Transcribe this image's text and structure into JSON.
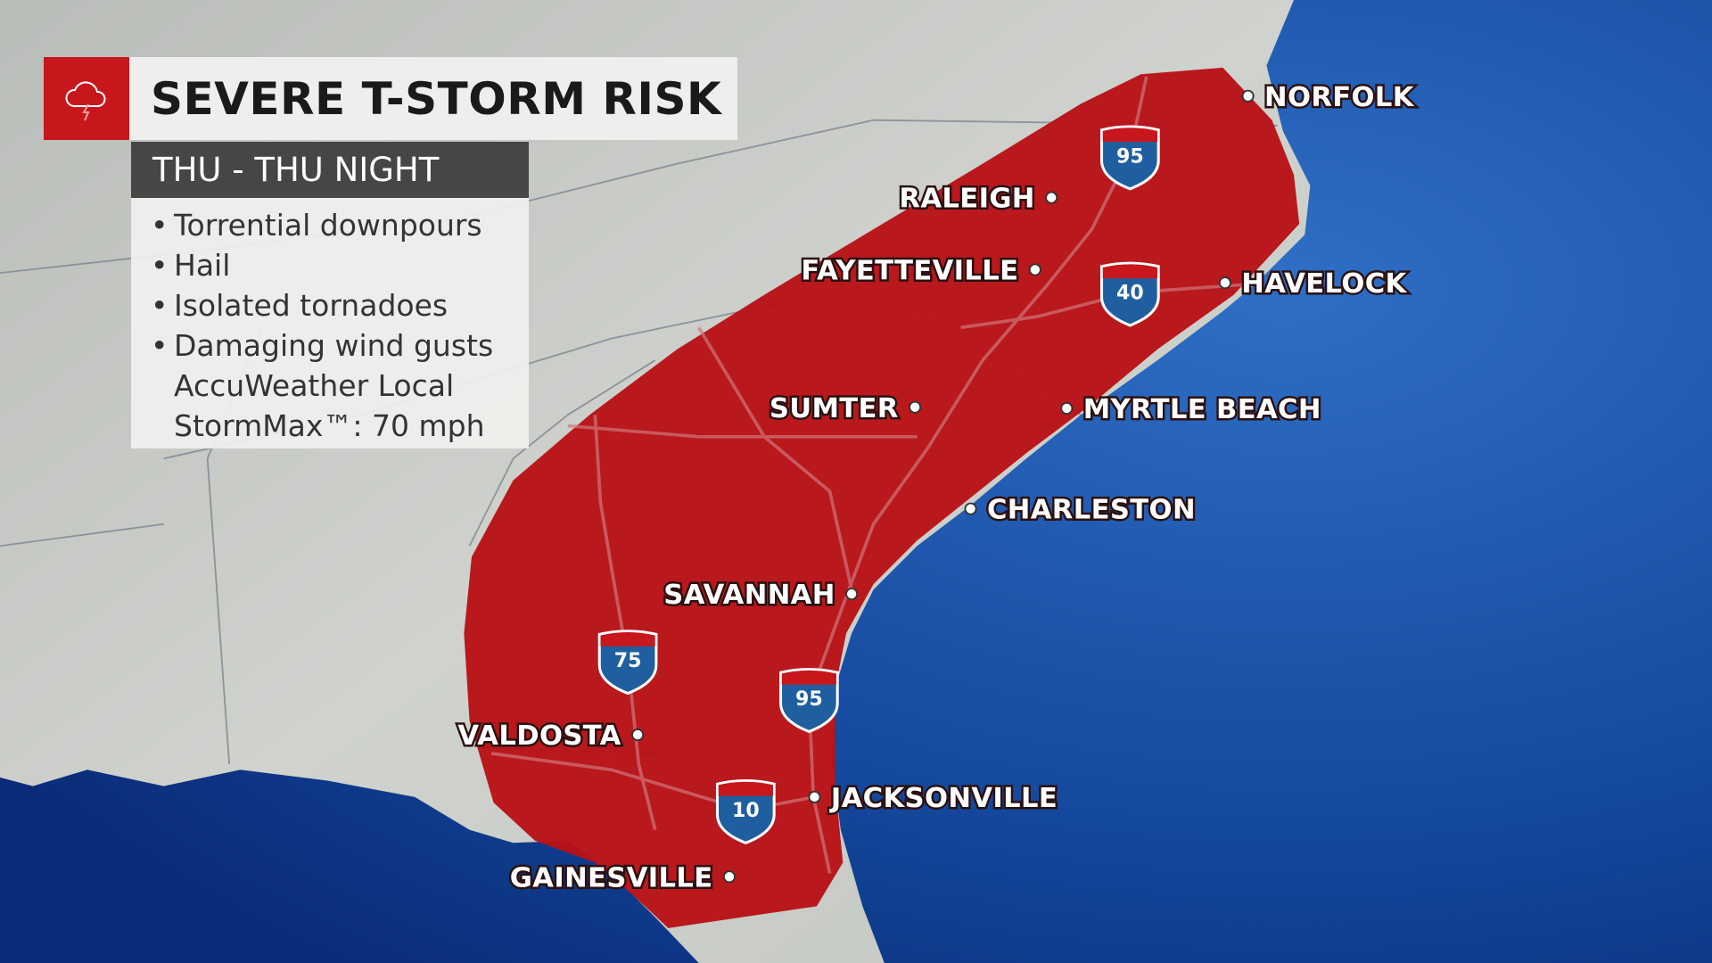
{
  "title": "SEVERE T-STORM RISK",
  "period": "THU - THU NIGHT",
  "icon": "thunderstorm-cloud-icon",
  "hazards": [
    "Torrential downpours",
    "Hail",
    "Isolated tornadoes",
    "Damaging wind gusts"
  ],
  "hazard_note": [
    "AccuWeather Local",
    "StormMax™: 70 mph"
  ],
  "cities": [
    "NORFOLK",
    "RALEIGH",
    "FAYETTEVILLE",
    "HAVELOCK",
    "SUMTER",
    "MYRTLE BEACH",
    "CHARLESTON",
    "SAVANNAH",
    "VALDOSTA",
    "JACKSONVILLE",
    "GAINESVILLE"
  ],
  "interstates": [
    "95",
    "40",
    "75",
    "95",
    "10"
  ],
  "colors": {
    "risk": "#b81217",
    "ocean": "#123f9a",
    "land": "#c9ccc6",
    "accent": "#c8161d",
    "shield_blue": "#1f5fa0"
  }
}
